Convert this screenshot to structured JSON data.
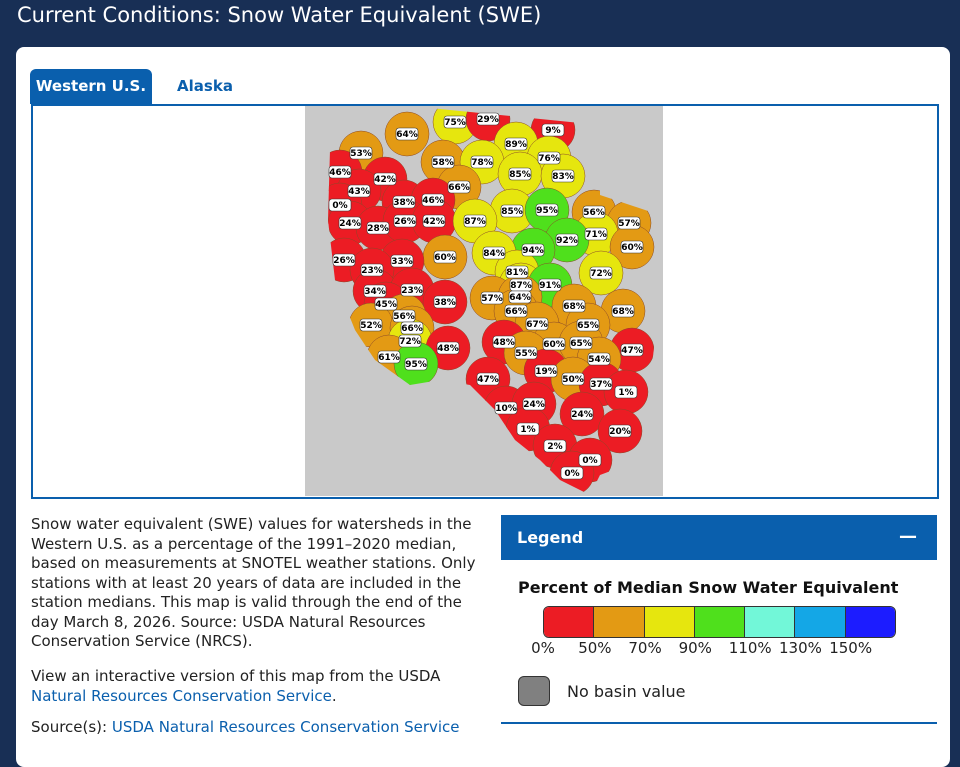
{
  "header": {
    "title": "Current Conditions: Snow Water Equivalent (SWE)"
  },
  "tabs": [
    "Western U.S.",
    "Alaska"
  ],
  "map": {
    "basins": [
      {
        "value": 75,
        "label": "75%"
      },
      {
        "value": 29,
        "label": "29%"
      },
      {
        "value": 64,
        "label": "64%"
      },
      {
        "value": 9,
        "label": "9%"
      },
      {
        "value": 89,
        "label": "89%"
      },
      {
        "value": 53,
        "label": "53%"
      },
      {
        "value": 76,
        "label": "76%"
      },
      {
        "value": 58,
        "label": "58%"
      },
      {
        "value": 78,
        "label": "78%"
      },
      {
        "value": 46,
        "label": "46%"
      },
      {
        "value": 85,
        "label": "85%"
      },
      {
        "value": 83,
        "label": "83%"
      },
      {
        "value": 42,
        "label": "42%"
      },
      {
        "value": 66,
        "label": "66%"
      },
      {
        "value": 43,
        "label": "43%"
      },
      {
        "value": 0,
        "label": "0%"
      },
      {
        "value": 38,
        "label": "38%"
      },
      {
        "value": 46,
        "label": "46%"
      },
      {
        "value": 85,
        "label": "85%"
      },
      {
        "value": 95,
        "label": "95%"
      },
      {
        "value": 56,
        "label": "56%"
      },
      {
        "value": 24,
        "label": "24%"
      },
      {
        "value": 28,
        "label": "28%"
      },
      {
        "value": 26,
        "label": "26%"
      },
      {
        "value": 42,
        "label": "42%"
      },
      {
        "value": 87,
        "label": "87%"
      },
      {
        "value": 57,
        "label": "57%"
      },
      {
        "value": 71,
        "label": "71%"
      },
      {
        "value": 92,
        "label": "92%"
      },
      {
        "value": 94,
        "label": "94%"
      },
      {
        "value": 60,
        "label": "60%"
      },
      {
        "value": 84,
        "label": "84%"
      },
      {
        "value": 60,
        "label": "60%"
      },
      {
        "value": 26,
        "label": "26%"
      },
      {
        "value": 33,
        "label": "33%"
      },
      {
        "value": 23,
        "label": "23%"
      },
      {
        "value": 81,
        "label": "81%"
      },
      {
        "value": 72,
        "label": "72%"
      },
      {
        "value": 87,
        "label": "87%"
      },
      {
        "value": 91,
        "label": "91%"
      },
      {
        "value": 34,
        "label": "34%"
      },
      {
        "value": 23,
        "label": "23%"
      },
      {
        "value": 57,
        "label": "57%"
      },
      {
        "value": 64,
        "label": "64%"
      },
      {
        "value": 45,
        "label": "45%"
      },
      {
        "value": 38,
        "label": "38%"
      },
      {
        "value": 68,
        "label": "68%"
      },
      {
        "value": 68,
        "label": "68%"
      },
      {
        "value": 66,
        "label": "66%"
      },
      {
        "value": 56,
        "label": "56%"
      },
      {
        "value": 52,
        "label": "52%"
      },
      {
        "value": 67,
        "label": "67%"
      },
      {
        "value": 65,
        "label": "65%"
      },
      {
        "value": 66,
        "label": "66%"
      },
      {
        "value": 72,
        "label": "72%"
      },
      {
        "value": 48,
        "label": "48%"
      },
      {
        "value": 60,
        "label": "60%"
      },
      {
        "value": 65,
        "label": "65%"
      },
      {
        "value": 47,
        "label": "47%"
      },
      {
        "value": 48,
        "label": "48%"
      },
      {
        "value": 55,
        "label": "55%"
      },
      {
        "value": 61,
        "label": "61%"
      },
      {
        "value": 95,
        "label": "95%"
      },
      {
        "value": 54,
        "label": "54%"
      },
      {
        "value": 19,
        "label": "19%"
      },
      {
        "value": 47,
        "label": "47%"
      },
      {
        "value": 50,
        "label": "50%"
      },
      {
        "value": 37,
        "label": "37%"
      },
      {
        "value": 1,
        "label": "1%"
      },
      {
        "value": 10,
        "label": "10%"
      },
      {
        "value": 24,
        "label": "24%"
      },
      {
        "value": 24,
        "label": "24%"
      },
      {
        "value": 1,
        "label": "1%"
      },
      {
        "value": 20,
        "label": "20%"
      },
      {
        "value": 2,
        "label": "2%"
      },
      {
        "value": 0,
        "label": "0%"
      },
      {
        "value": 0,
        "label": "0%"
      }
    ]
  },
  "description": "Snow water equivalent (SWE) values for watersheds in the Western U.S. as a percentage of the 1991–2020 median, based on measurements at SNOTEL weather stations. Only stations with at least 20 years of data are included in the station medians. This map is valid through the end of the day March 8, 2026. Source: USDA Natural Resources Conservation Service (NRCS).",
  "interactive": {
    "text": "View an interactive version of this map from the USDA",
    "link": "Natural Resources Conservation Service",
    "end": "."
  },
  "source": {
    "label": "Source(s):",
    "link": "USDA Natural Resources Conservation Service"
  },
  "legend": {
    "title": "Legend",
    "toggle": "—",
    "subtitle": "Percent of Median Snow Water Equivalent",
    "colors": [
      "#ec1c24",
      "#e39a14",
      "#e6e60e",
      "#4fe01c",
      "#72f7d8",
      "#14a7e6",
      "#1c1cff"
    ],
    "ticks": [
      {
        "value": 0,
        "label": "0%"
      },
      {
        "value": 50,
        "label": "50%"
      },
      {
        "value": 70,
        "label": "70%"
      },
      {
        "value": 90,
        "label": "90%"
      },
      {
        "value": 110,
        "label": "110%"
      },
      {
        "value": 130,
        "label": "130%"
      },
      {
        "value": 150,
        "label": "150%"
      }
    ],
    "no_value": {
      "label": "No basin value",
      "color": "#808080"
    }
  }
}
